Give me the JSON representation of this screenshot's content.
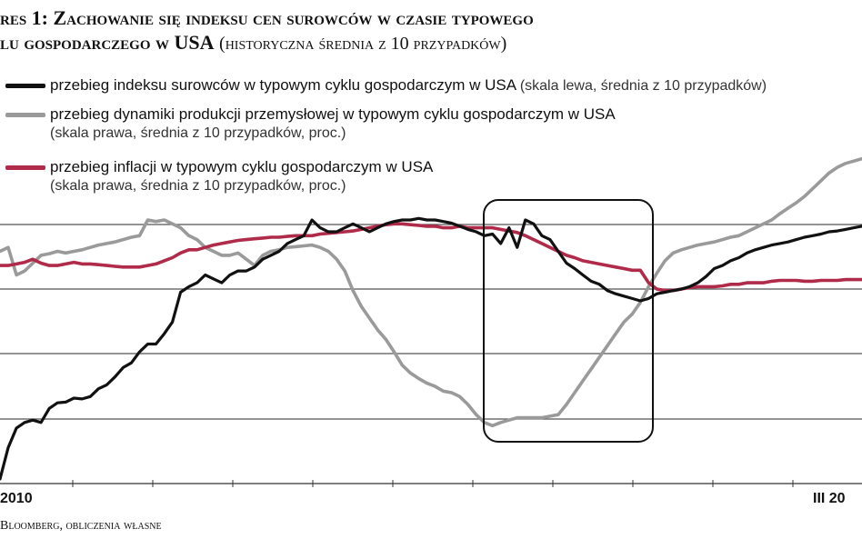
{
  "title": {
    "line1": "res 1: Zachowanie się indeksu cen surowców w czasie typowego",
    "line2_bold": "lu gospodarczego w USA",
    "line2_sub": "(historyczna średnia z 10 przypadków)"
  },
  "legend": [
    {
      "label": "przebieg indeksu surowców w typowym cyklu gospodarczym w USA",
      "note": "(skala lewa, średnia z 10 przypadków)",
      "sub": "",
      "color": "#111111"
    },
    {
      "label": "przebieg dynamiki produkcji przemysłowej w typowym cyklu gospodarczym w USA",
      "note": "",
      "sub": "(skala prawa, średnia z 10 przypadków, proc.)",
      "color": "#9a9a9a"
    },
    {
      "label": "przebieg inflacji w typowym cyklu gospodarczym w USA",
      "note": "",
      "sub": "(skala prawa, średnia z 10 przypadków, proc.)",
      "color": "#b02a4a"
    }
  ],
  "x_tick_labels": {
    "left": "2010",
    "right": "III 20"
  },
  "source": "Bloomberg, obliczenia własne",
  "chart_data": {
    "type": "line",
    "x": [
      0,
      1,
      2,
      3,
      4,
      5,
      6,
      7,
      8,
      9,
      10,
      11,
      12,
      13,
      14,
      15,
      16,
      17,
      18,
      19,
      20,
      21,
      22,
      23,
      24,
      25,
      26,
      27,
      28,
      29,
      30,
      31,
      32,
      33,
      34,
      35,
      36,
      37,
      38,
      39,
      40,
      41,
      42,
      43,
      44,
      45,
      46,
      47,
      48,
      49,
      50,
      51,
      52,
      53,
      54,
      55,
      56,
      57,
      58,
      59,
      60,
      61,
      62,
      63,
      64,
      65,
      66,
      67,
      68,
      69,
      70,
      71,
      72,
      73,
      74,
      75,
      76,
      77,
      78,
      79,
      80,
      81,
      82,
      83,
      84,
      85,
      86,
      87,
      88,
      89,
      90,
      91,
      92,
      93,
      94,
      95,
      96,
      97,
      98,
      99,
      100,
      101,
      102,
      103,
      104,
      105
    ],
    "xlim": [
      0,
      105
    ],
    "ylim": [
      0,
      4.1
    ],
    "series": [
      {
        "name": "przebieg indeksu surowców w typowym cyklu gospodarczym w USA",
        "color": "#111111",
        "values": [
          0.0,
          0.4,
          0.65,
          0.72,
          0.75,
          0.72,
          0.9,
          0.97,
          0.98,
          1.03,
          1.02,
          1.05,
          1.15,
          1.2,
          1.3,
          1.42,
          1.48,
          1.62,
          1.72,
          1.72,
          1.85,
          2.0,
          2.38,
          2.45,
          2.5,
          2.6,
          2.55,
          2.5,
          2.6,
          2.65,
          2.65,
          2.7,
          2.8,
          2.85,
          2.9,
          3.0,
          3.05,
          3.1,
          3.3,
          3.2,
          3.15,
          3.15,
          3.2,
          3.25,
          3.2,
          3.15,
          3.2,
          3.25,
          3.28,
          3.3,
          3.3,
          3.32,
          3.3,
          3.3,
          3.28,
          3.26,
          3.22,
          3.18,
          3.15,
          3.1,
          3.12,
          3.0,
          3.2,
          2.95,
          3.3,
          3.25,
          3.1,
          3.05,
          2.9,
          2.75,
          2.68,
          2.6,
          2.52,
          2.48,
          2.4,
          2.36,
          2.33,
          2.3,
          2.27,
          2.3,
          2.36,
          2.38,
          2.4,
          2.42,
          2.45,
          2.5,
          2.58,
          2.68,
          2.72,
          2.78,
          2.82,
          2.88,
          2.92,
          2.95,
          2.98,
          3.0,
          3.02,
          3.05,
          3.08,
          3.1,
          3.12,
          3.15,
          3.16,
          3.18,
          3.2,
          3.22
        ]
      },
      {
        "name": "przebieg dynamiki produkcji przemysłowej w typowym cyklu gospodarczym w USA",
        "color": "#9a9a9a",
        "values": [
          2.9,
          2.95,
          2.6,
          2.65,
          2.75,
          2.85,
          2.87,
          2.9,
          2.88,
          2.9,
          2.92,
          2.95,
          2.98,
          3.0,
          3.02,
          3.05,
          3.08,
          3.1,
          3.3,
          3.28,
          3.3,
          3.25,
          3.2,
          3.1,
          3.05,
          2.95,
          2.9,
          2.85,
          2.85,
          2.88,
          2.8,
          2.72,
          2.85,
          2.9,
          2.92,
          2.95,
          2.96,
          2.97,
          2.98,
          2.95,
          2.9,
          2.8,
          2.65,
          2.4,
          2.2,
          2.05,
          1.9,
          1.78,
          1.62,
          1.45,
          1.35,
          1.28,
          1.22,
          1.18,
          1.12,
          1.1,
          1.05,
          0.95,
          0.82,
          0.72,
          0.68,
          0.72,
          0.75,
          0.78,
          0.78,
          0.78,
          0.78,
          0.8,
          0.82,
          0.95,
          1.1,
          1.25,
          1.4,
          1.55,
          1.7,
          1.85,
          2.0,
          2.1,
          2.25,
          2.45,
          2.62,
          2.78,
          2.88,
          2.92,
          2.95,
          2.98,
          3.0,
          3.02,
          3.05,
          3.08,
          3.1,
          3.15,
          3.2,
          3.25,
          3.3,
          3.38,
          3.45,
          3.52,
          3.6,
          3.7,
          3.8,
          3.9,
          3.97,
          4.02,
          4.05,
          4.08
        ]
      },
      {
        "name": "przebieg inflacji w typowym cyklu gospodarczym w USA",
        "color": "#b02a4a",
        "values": [
          2.72,
          2.72,
          2.74,
          2.76,
          2.8,
          2.75,
          2.72,
          2.72,
          2.74,
          2.76,
          2.74,
          2.74,
          2.73,
          2.72,
          2.71,
          2.7,
          2.7,
          2.7,
          2.72,
          2.74,
          2.78,
          2.82,
          2.88,
          2.92,
          2.92,
          2.95,
          2.98,
          3.0,
          3.02,
          3.04,
          3.05,
          3.06,
          3.07,
          3.08,
          3.08,
          3.09,
          3.1,
          3.1,
          3.1,
          3.12,
          3.13,
          3.14,
          3.15,
          3.16,
          3.18,
          3.2,
          3.22,
          3.24,
          3.25,
          3.25,
          3.24,
          3.23,
          3.22,
          3.22,
          3.2,
          3.2,
          3.22,
          3.2,
          3.2,
          3.2,
          3.2,
          3.18,
          3.16,
          3.14,
          3.1,
          3.05,
          3.0,
          2.95,
          2.9,
          2.85,
          2.82,
          2.78,
          2.76,
          2.74,
          2.72,
          2.7,
          2.68,
          2.66,
          2.66,
          2.5,
          2.42,
          2.4,
          2.4,
          2.42,
          2.44,
          2.45,
          2.45,
          2.45,
          2.46,
          2.48,
          2.48,
          2.5,
          2.5,
          2.5,
          2.52,
          2.53,
          2.53,
          2.53,
          2.52,
          2.52,
          2.53,
          2.53,
          2.53,
          2.54,
          2.54,
          2.54
        ]
      }
    ],
    "grid": true
  }
}
